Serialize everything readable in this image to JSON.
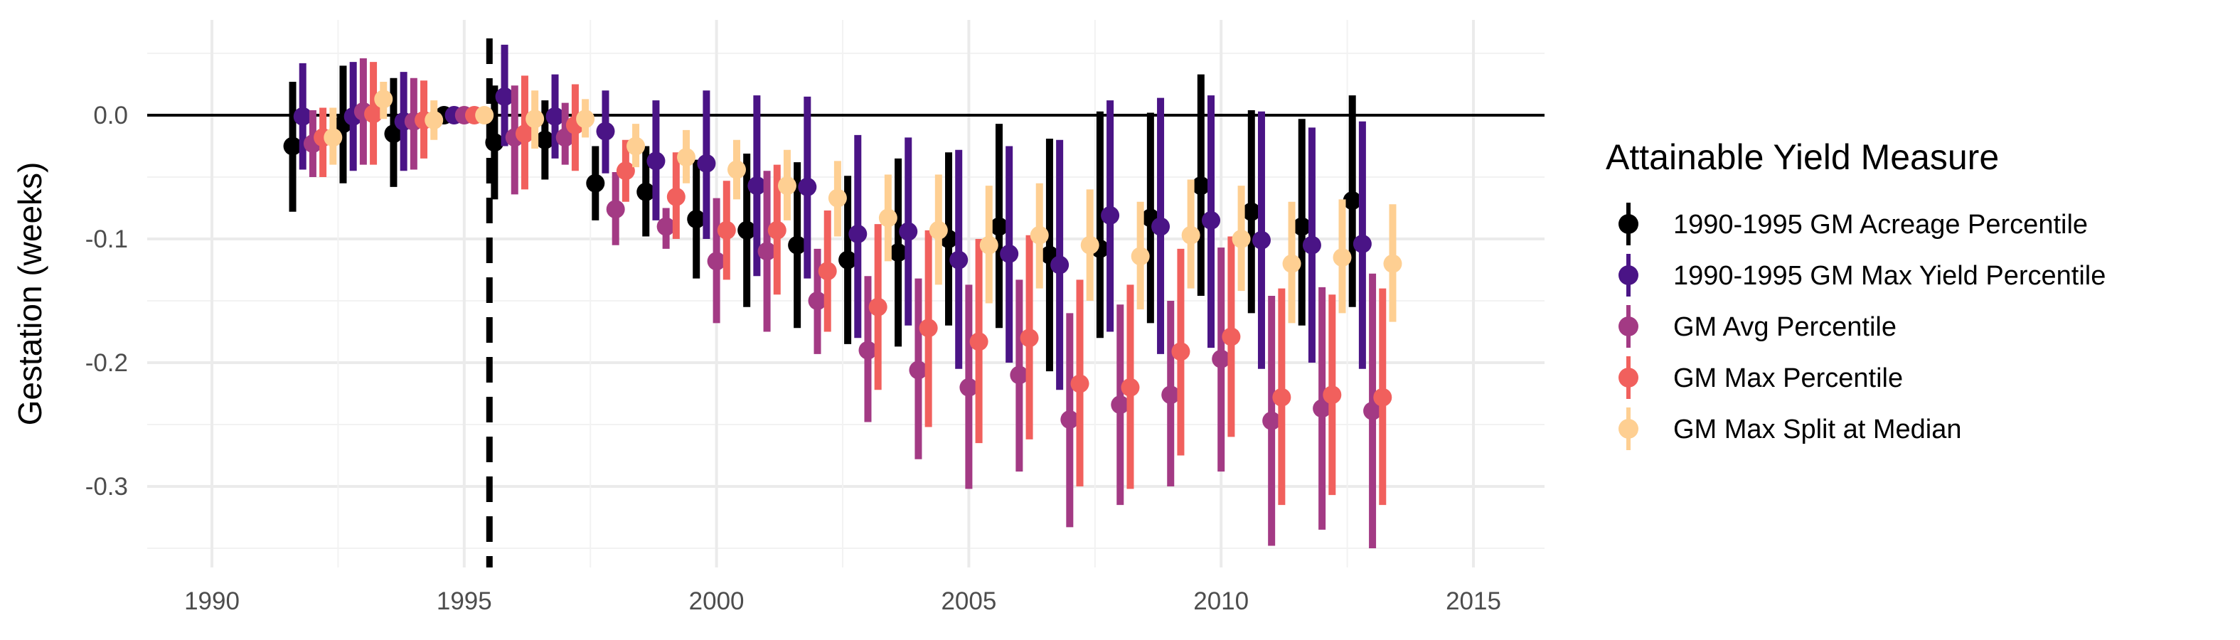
{
  "chart_data": {
    "type": "scatter",
    "subtype": "point-range (estimate with confidence interval)",
    "title": "",
    "xlabel": "",
    "ylabel": "Gestation (weeks)",
    "xlim": [
      1988.8,
      2016.2
    ],
    "ylim": [
      -0.37,
      0.077
    ],
    "x_ticks": [
      1990,
      1995,
      2000,
      2005,
      2010,
      2015
    ],
    "y_ticks": [
      0.0,
      -0.1,
      -0.2,
      -0.3
    ],
    "x_tick_labels": [
      "1990",
      "1995",
      "2000",
      "2005",
      "2010",
      "2015"
    ],
    "y_tick_labels": [
      "0.0",
      "-0.1",
      "-0.2",
      "-0.3"
    ],
    "grid": true,
    "reference_hline": 0,
    "reference_vline": 1995.5,
    "dodge": 0.2,
    "legend": {
      "title": "Attainable Yield Measure",
      "position": "right"
    },
    "series": [
      {
        "name": "1990-1995 GM Acreage Percentile",
        "color": "#000000",
        "points": [
          {
            "x": 1992,
            "y": -0.025,
            "lo": -0.078,
            "hi": 0.027
          },
          {
            "x": 1993,
            "y": -0.007,
            "lo": -0.055,
            "hi": 0.04
          },
          {
            "x": 1994,
            "y": -0.015,
            "lo": -0.058,
            "hi": 0.03
          },
          {
            "x": 1995,
            "y": 0.0,
            "lo": 0.0,
            "hi": 0.0
          },
          {
            "x": 1996,
            "y": -0.022,
            "lo": -0.068,
            "hi": 0.024
          },
          {
            "x": 1997,
            "y": -0.02,
            "lo": -0.052,
            "hi": 0.012
          },
          {
            "x": 1998,
            "y": -0.055,
            "lo": -0.085,
            "hi": -0.025
          },
          {
            "x": 1999,
            "y": -0.062,
            "lo": -0.098,
            "hi": -0.025
          },
          {
            "x": 2000,
            "y": -0.084,
            "lo": -0.132,
            "hi": -0.036
          },
          {
            "x": 2001,
            "y": -0.093,
            "lo": -0.155,
            "hi": -0.031
          },
          {
            "x": 2002,
            "y": -0.105,
            "lo": -0.172,
            "hi": -0.038
          },
          {
            "x": 2003,
            "y": -0.117,
            "lo": -0.185,
            "hi": -0.049
          },
          {
            "x": 2004,
            "y": -0.111,
            "lo": -0.187,
            "hi": -0.035
          },
          {
            "x": 2005,
            "y": -0.1,
            "lo": -0.17,
            "hi": -0.03
          },
          {
            "x": 2006,
            "y": -0.09,
            "lo": -0.172,
            "hi": -0.007
          },
          {
            "x": 2007,
            "y": -0.113,
            "lo": -0.207,
            "hi": -0.019
          },
          {
            "x": 2008,
            "y": -0.108,
            "lo": -0.18,
            "hi": 0.003
          },
          {
            "x": 2009,
            "y": -0.083,
            "lo": -0.168,
            "hi": 0.002
          },
          {
            "x": 2010,
            "y": -0.057,
            "lo": -0.146,
            "hi": 0.033
          },
          {
            "x": 2011,
            "y": -0.078,
            "lo": -0.16,
            "hi": 0.004
          },
          {
            "x": 2012,
            "y": -0.09,
            "lo": -0.17,
            "hi": -0.003
          },
          {
            "x": 2013,
            "y": -0.069,
            "lo": -0.155,
            "hi": 0.016
          }
        ]
      },
      {
        "name": "1990-1995 GM Max Yield Percentile",
        "color": "#4a1486",
        "points": [
          {
            "x": 1992,
            "y": -0.001,
            "lo": -0.044,
            "hi": 0.042
          },
          {
            "x": 1993,
            "y": -0.001,
            "lo": -0.045,
            "hi": 0.043
          },
          {
            "x": 1994,
            "y": -0.005,
            "lo": -0.045,
            "hi": 0.035
          },
          {
            "x": 1995,
            "y": 0.0,
            "lo": 0.0,
            "hi": 0.0
          },
          {
            "x": 1996,
            "y": 0.015,
            "lo": -0.025,
            "hi": 0.057
          },
          {
            "x": 1997,
            "y": -0.001,
            "lo": -0.035,
            "hi": 0.033
          },
          {
            "x": 1998,
            "y": -0.013,
            "lo": -0.047,
            "hi": 0.02
          },
          {
            "x": 1999,
            "y": -0.037,
            "lo": -0.085,
            "hi": 0.012
          },
          {
            "x": 2000,
            "y": -0.039,
            "lo": -0.1,
            "hi": 0.02
          },
          {
            "x": 2001,
            "y": -0.057,
            "lo": -0.13,
            "hi": 0.016
          },
          {
            "x": 2002,
            "y": -0.058,
            "lo": -0.132,
            "hi": 0.015
          },
          {
            "x": 2003,
            "y": -0.096,
            "lo": -0.18,
            "hi": -0.016
          },
          {
            "x": 2004,
            "y": -0.094,
            "lo": -0.17,
            "hi": -0.018
          },
          {
            "x": 2005,
            "y": -0.117,
            "lo": -0.205,
            "hi": -0.028
          },
          {
            "x": 2006,
            "y": -0.112,
            "lo": -0.2,
            "hi": -0.025
          },
          {
            "x": 2007,
            "y": -0.121,
            "lo": -0.222,
            "hi": -0.02
          },
          {
            "x": 2008,
            "y": -0.081,
            "lo": -0.175,
            "hi": 0.012
          },
          {
            "x": 2009,
            "y": -0.09,
            "lo": -0.193,
            "hi": 0.014
          },
          {
            "x": 2010,
            "y": -0.085,
            "lo": -0.188,
            "hi": 0.016
          },
          {
            "x": 2011,
            "y": -0.101,
            "lo": -0.205,
            "hi": 0.003
          },
          {
            "x": 2012,
            "y": -0.105,
            "lo": -0.2,
            "hi": -0.01
          },
          {
            "x": 2013,
            "y": -0.104,
            "lo": -0.205,
            "hi": -0.005
          }
        ]
      },
      {
        "name": "GM Avg Percentile",
        "color": "#a33a84",
        "points": [
          {
            "x": 1992,
            "y": -0.023,
            "lo": -0.05,
            "hi": 0.004
          },
          {
            "x": 1993,
            "y": 0.003,
            "lo": -0.04,
            "hi": 0.046
          },
          {
            "x": 1994,
            "y": -0.005,
            "lo": -0.044,
            "hi": 0.03
          },
          {
            "x": 1995,
            "y": 0.0,
            "lo": 0.0,
            "hi": 0.0
          },
          {
            "x": 1996,
            "y": -0.018,
            "lo": -0.064,
            "hi": 0.024
          },
          {
            "x": 1997,
            "y": -0.018,
            "lo": -0.04,
            "hi": 0.01
          },
          {
            "x": 1998,
            "y": -0.076,
            "lo": -0.105,
            "hi": -0.046
          },
          {
            "x": 1999,
            "y": -0.09,
            "lo": -0.108,
            "hi": -0.075
          },
          {
            "x": 2000,
            "y": -0.118,
            "lo": -0.168,
            "hi": -0.067
          },
          {
            "x": 2001,
            "y": -0.11,
            "lo": -0.175,
            "hi": -0.045
          },
          {
            "x": 2002,
            "y": -0.15,
            "lo": -0.193,
            "hi": -0.108
          },
          {
            "x": 2003,
            "y": -0.19,
            "lo": -0.248,
            "hi": -0.13
          },
          {
            "x": 2004,
            "y": -0.206,
            "lo": -0.278,
            "hi": -0.132
          },
          {
            "x": 2005,
            "y": -0.22,
            "lo": -0.302,
            "hi": -0.137
          },
          {
            "x": 2006,
            "y": -0.21,
            "lo": -0.288,
            "hi": -0.133
          },
          {
            "x": 2007,
            "y": -0.246,
            "lo": -0.333,
            "hi": -0.16
          },
          {
            "x": 2008,
            "y": -0.234,
            "lo": -0.315,
            "hi": -0.153
          },
          {
            "x": 2009,
            "y": -0.226,
            "lo": -0.3,
            "hi": -0.15
          },
          {
            "x": 2010,
            "y": -0.197,
            "lo": -0.288,
            "hi": -0.107
          },
          {
            "x": 2011,
            "y": -0.247,
            "lo": -0.348,
            "hi": -0.146
          },
          {
            "x": 2012,
            "y": -0.237,
            "lo": -0.335,
            "hi": -0.139
          },
          {
            "x": 2013,
            "y": -0.239,
            "lo": -0.35,
            "hi": -0.128
          }
        ]
      },
      {
        "name": "GM Max Percentile",
        "color": "#f1605d",
        "points": [
          {
            "x": 1992,
            "y": -0.018,
            "lo": -0.05,
            "hi": 0.006
          },
          {
            "x": 1993,
            "y": 0.001,
            "lo": -0.04,
            "hi": 0.043
          },
          {
            "x": 1994,
            "y": -0.004,
            "lo": -0.035,
            "hi": 0.028
          },
          {
            "x": 1995,
            "y": 0.0,
            "lo": 0.0,
            "hi": 0.0
          },
          {
            "x": 1996,
            "y": -0.015,
            "lo": -0.06,
            "hi": 0.032
          },
          {
            "x": 1997,
            "y": -0.008,
            "lo": -0.045,
            "hi": 0.025
          },
          {
            "x": 1998,
            "y": -0.045,
            "lo": -0.07,
            "hi": -0.02
          },
          {
            "x": 1999,
            "y": -0.066,
            "lo": -0.1,
            "hi": -0.03
          },
          {
            "x": 2000,
            "y": -0.093,
            "lo": -0.133,
            "hi": -0.053
          },
          {
            "x": 2001,
            "y": -0.093,
            "lo": -0.145,
            "hi": -0.04
          },
          {
            "x": 2002,
            "y": -0.126,
            "lo": -0.175,
            "hi": -0.077
          },
          {
            "x": 2003,
            "y": -0.155,
            "lo": -0.222,
            "hi": -0.088
          },
          {
            "x": 2004,
            "y": -0.172,
            "lo": -0.252,
            "hi": -0.093
          },
          {
            "x": 2005,
            "y": -0.183,
            "lo": -0.265,
            "hi": -0.1
          },
          {
            "x": 2006,
            "y": -0.18,
            "lo": -0.262,
            "hi": -0.097
          },
          {
            "x": 2007,
            "y": -0.217,
            "lo": -0.3,
            "hi": -0.133
          },
          {
            "x": 2008,
            "y": -0.22,
            "lo": -0.302,
            "hi": -0.137
          },
          {
            "x": 2009,
            "y": -0.191,
            "lo": -0.275,
            "hi": -0.108
          },
          {
            "x": 2010,
            "y": -0.179,
            "lo": -0.26,
            "hi": -0.098
          },
          {
            "x": 2011,
            "y": -0.228,
            "lo": -0.315,
            "hi": -0.14
          },
          {
            "x": 2012,
            "y": -0.226,
            "lo": -0.307,
            "hi": -0.145
          },
          {
            "x": 2013,
            "y": -0.228,
            "lo": -0.315,
            "hi": -0.14
          }
        ]
      },
      {
        "name": "GM Max Split at Median",
        "color": "#fecf92",
        "points": [
          {
            "x": 1992,
            "y": -0.018,
            "lo": -0.04,
            "hi": 0.006
          },
          {
            "x": 1993,
            "y": 0.013,
            "lo": -0.003,
            "hi": 0.027
          },
          {
            "x": 1994,
            "y": -0.004,
            "lo": -0.02,
            "hi": 0.012
          },
          {
            "x": 1995,
            "y": 0.0,
            "lo": 0.0,
            "hi": 0.0
          },
          {
            "x": 1996,
            "y": -0.003,
            "lo": -0.027,
            "hi": 0.02
          },
          {
            "x": 1997,
            "y": -0.003,
            "lo": -0.018,
            "hi": 0.013
          },
          {
            "x": 1998,
            "y": -0.025,
            "lo": -0.042,
            "hi": -0.007
          },
          {
            "x": 1999,
            "y": -0.034,
            "lo": -0.055,
            "hi": -0.012
          },
          {
            "x": 2000,
            "y": -0.044,
            "lo": -0.068,
            "hi": -0.02
          },
          {
            "x": 2001,
            "y": -0.057,
            "lo": -0.085,
            "hi": -0.028
          },
          {
            "x": 2002,
            "y": -0.067,
            "lo": -0.098,
            "hi": -0.037
          },
          {
            "x": 2003,
            "y": -0.083,
            "lo": -0.118,
            "hi": -0.048
          },
          {
            "x": 2004,
            "y": -0.093,
            "lo": -0.137,
            "hi": -0.048
          },
          {
            "x": 2005,
            "y": -0.105,
            "lo": -0.152,
            "hi": -0.057
          },
          {
            "x": 2006,
            "y": -0.097,
            "lo": -0.14,
            "hi": -0.055
          },
          {
            "x": 2007,
            "y": -0.105,
            "lo": -0.15,
            "hi": -0.06
          },
          {
            "x": 2008,
            "y": -0.114,
            "lo": -0.157,
            "hi": -0.07
          },
          {
            "x": 2009,
            "y": -0.097,
            "lo": -0.14,
            "hi": -0.052
          },
          {
            "x": 2010,
            "y": -0.1,
            "lo": -0.142,
            "hi": -0.057
          },
          {
            "x": 2011,
            "y": -0.12,
            "lo": -0.168,
            "hi": -0.07
          },
          {
            "x": 2012,
            "y": -0.115,
            "lo": -0.16,
            "hi": -0.068
          },
          {
            "x": 2013,
            "y": -0.12,
            "lo": -0.167,
            "hi": -0.072
          }
        ]
      }
    ]
  }
}
